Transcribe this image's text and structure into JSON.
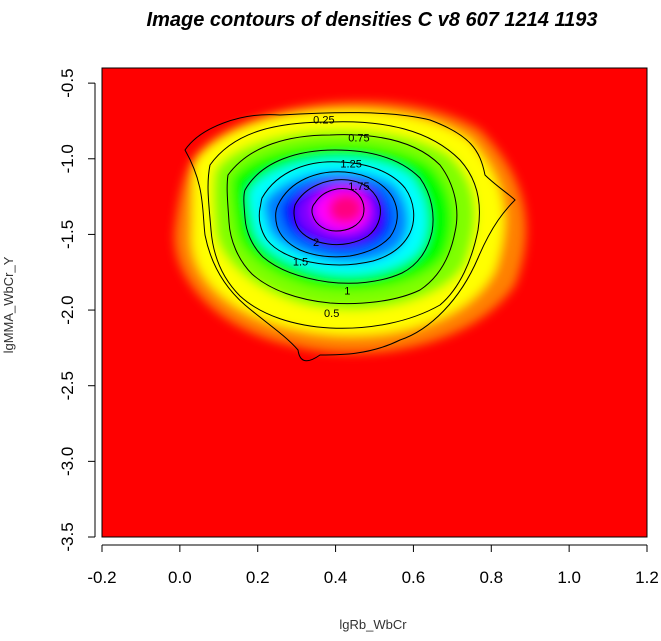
{
  "chart_data": {
    "type": "heatmap",
    "title": "Image contours of densities C v8 607 1214 1193",
    "xlabel": "lgRb_WbCr",
    "ylabel": "lgMMA_WbCr_Y",
    "xlim": [
      -0.2,
      1.2
    ],
    "ylim": [
      -3.5,
      -0.4
    ],
    "y_reversed": true,
    "x_ticks": [
      -0.2,
      0.0,
      0.2,
      0.4,
      0.6,
      0.8,
      1.0,
      1.2
    ],
    "x_tick_labels": [
      "-0.2",
      "0.0",
      "0.2",
      "0.4",
      "0.6",
      "0.8",
      "1.0",
      "1.2"
    ],
    "y_ticks": [
      -0.5,
      -1.0,
      -1.5,
      -2.0,
      -2.5,
      -3.0,
      -3.5
    ],
    "y_tick_labels": [
      "-0.5",
      "-1.0",
      "-1.5",
      "-2.0",
      "-2.5",
      "-3.0",
      "-3.5"
    ],
    "density_peak": {
      "x": 0.41,
      "y": -1.35,
      "value": 2.3
    },
    "colormap": [
      "#ff0000",
      "#ff8000",
      "#ffff00",
      "#80ff00",
      "#00ff00",
      "#00ff80",
      "#00ffff",
      "#0080ff",
      "#0000ff",
      "#8000ff",
      "#ff00ff",
      "#ff0080"
    ],
    "contour_levels": [
      {
        "level": 0.25,
        "label": "0.25",
        "label_at": [
          0.37,
          -0.74
        ]
      },
      {
        "level": 0.5,
        "label": "0.5",
        "label_at": [
          0.39,
          -2.02
        ]
      },
      {
        "level": 0.75,
        "label": "0.75",
        "label_at": [
          0.46,
          -0.86
        ]
      },
      {
        "level": 1.0,
        "label": "1",
        "label_at": [
          0.43,
          -1.87
        ]
      },
      {
        "level": 1.25,
        "label": "1.25",
        "label_at": [
          0.44,
          -1.03
        ]
      },
      {
        "level": 1.5,
        "label": "1.5",
        "label_at": [
          0.31,
          -1.68
        ]
      },
      {
        "level": 1.75,
        "label": "1.75",
        "label_at": [
          0.46,
          -1.18
        ]
      },
      {
        "level": 2.0,
        "label": "2",
        "label_at": [
          0.35,
          -1.55
        ]
      }
    ]
  }
}
